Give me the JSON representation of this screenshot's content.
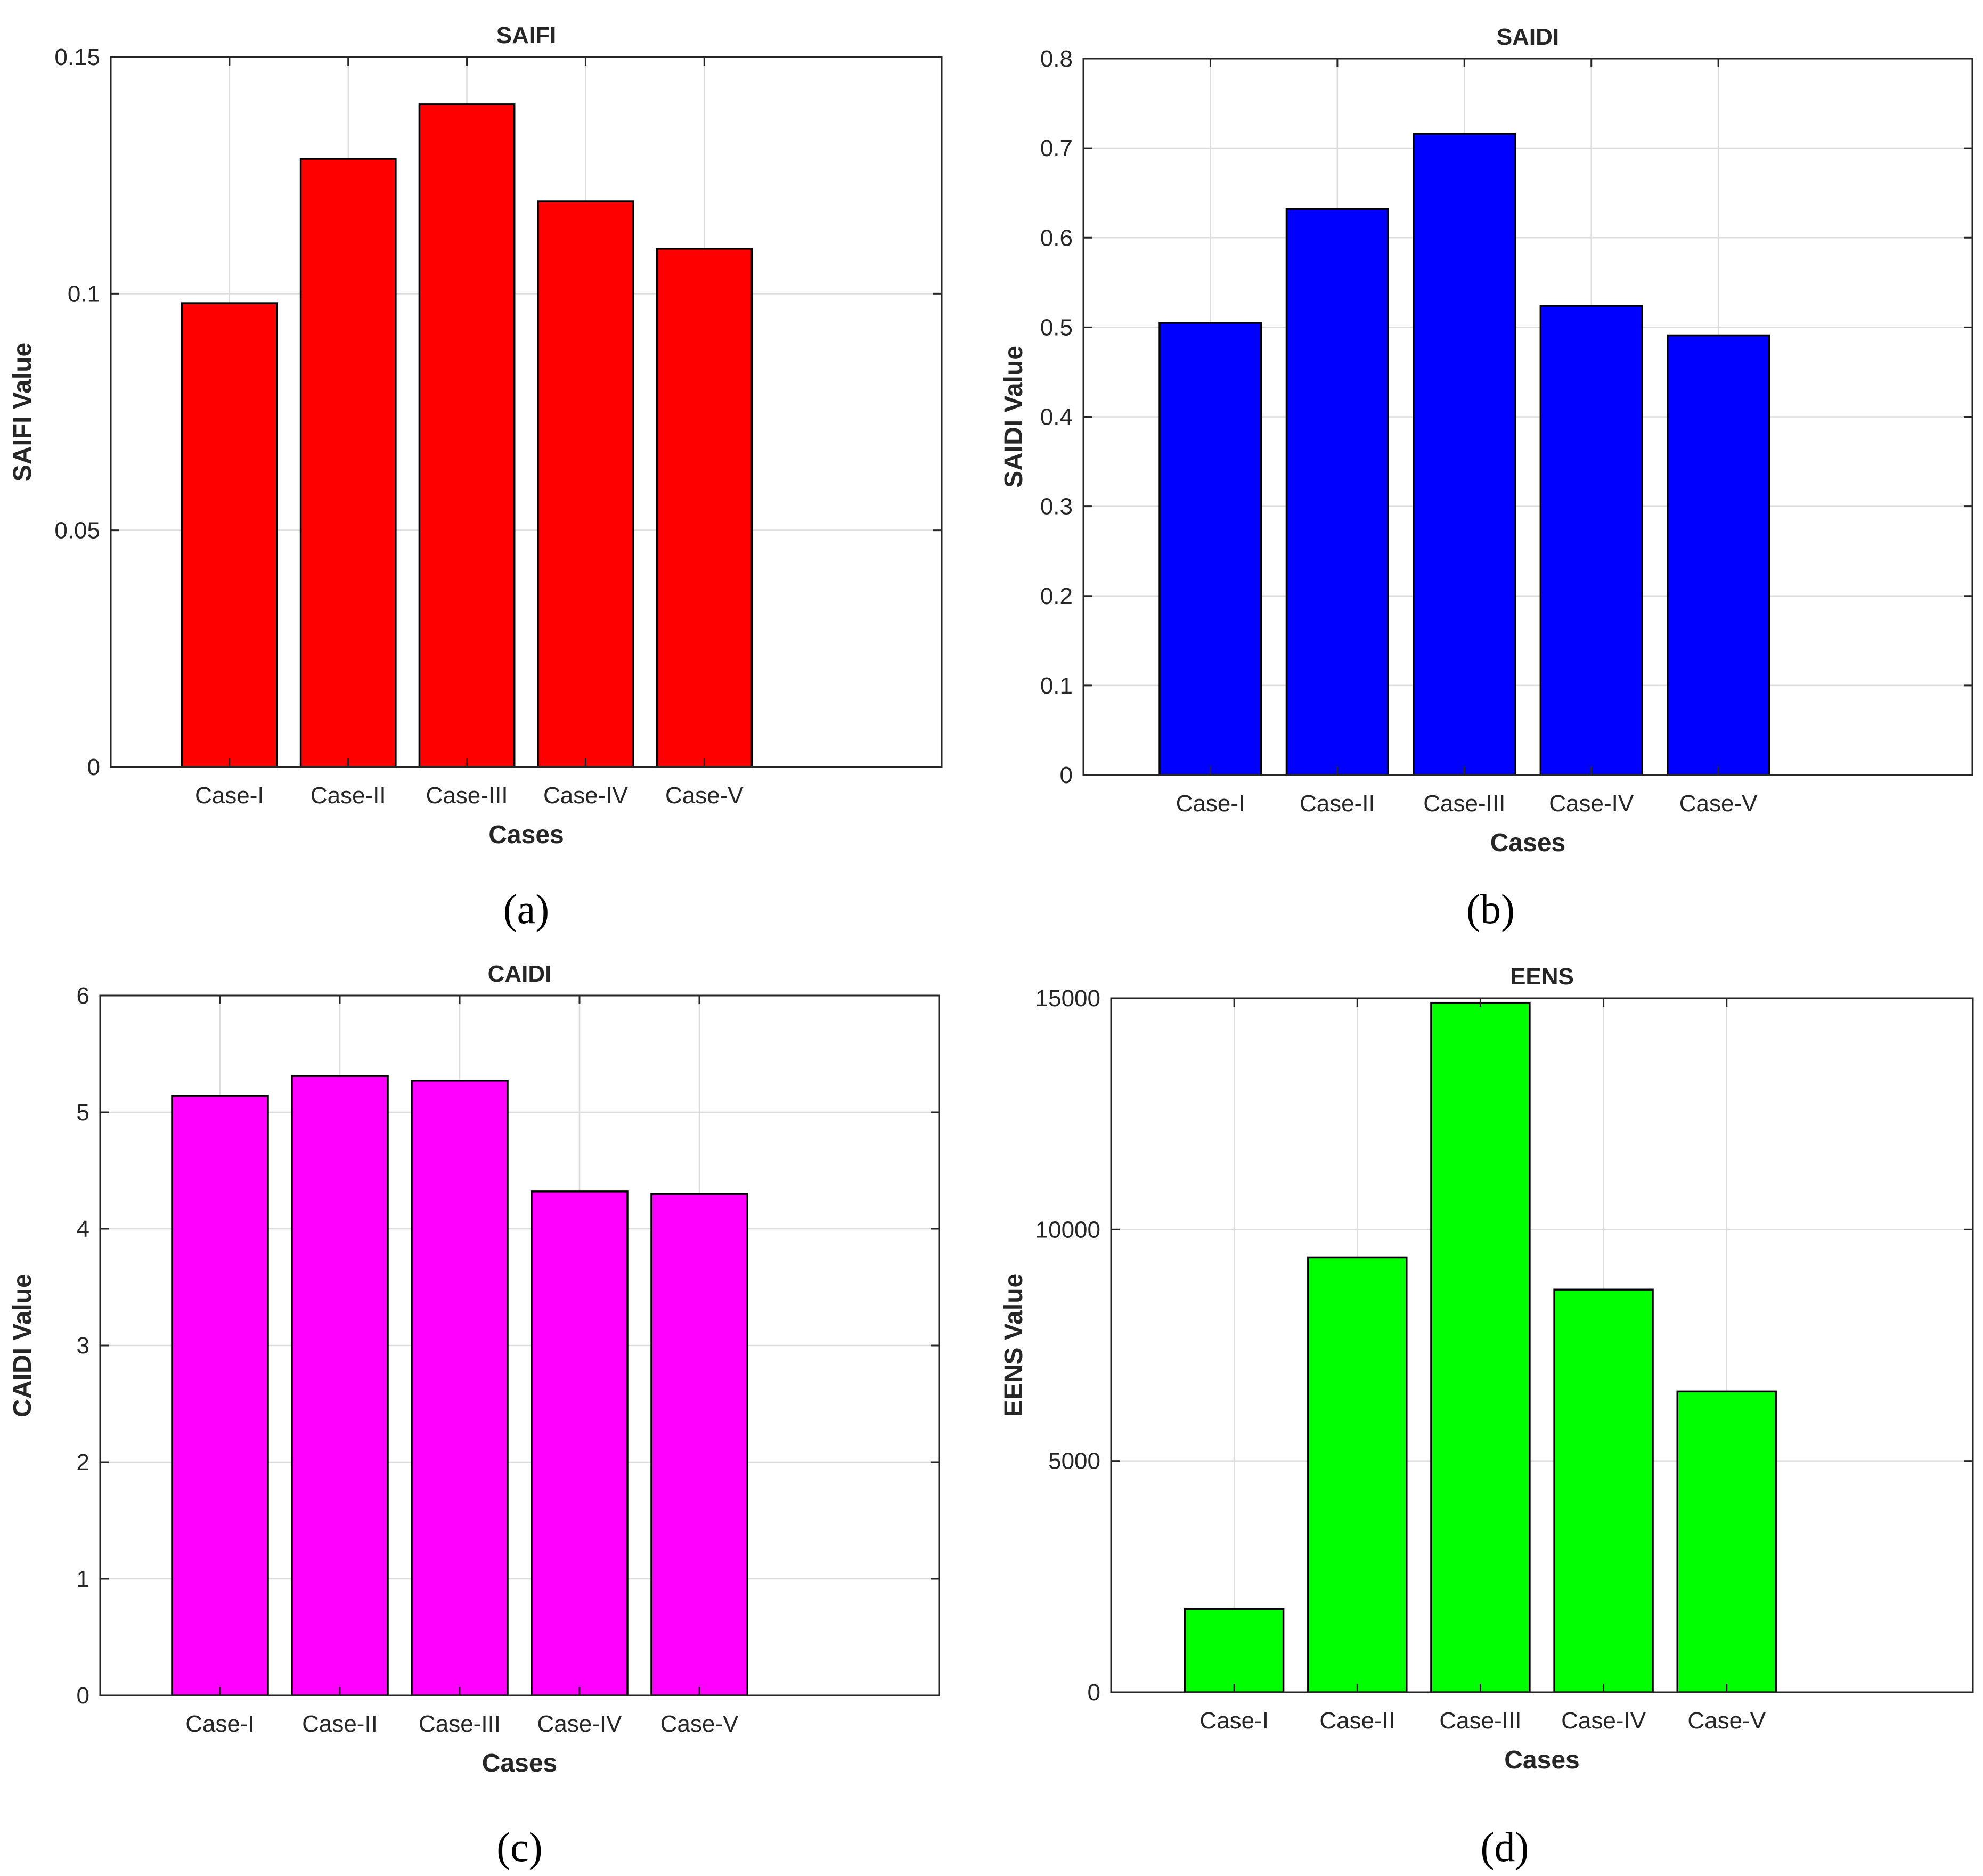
{
  "chart_data": [
    {
      "type": "bar",
      "title": "SAIFI",
      "xlabel": "Cases",
      "ylabel": "SAIFI Value",
      "caption": "(a)",
      "color": "#ff0000",
      "categories": [
        "Case-I",
        "Case-II",
        "Case-III",
        "Case-IV",
        "Case-V"
      ],
      "values": [
        0.098,
        0.1285,
        0.14,
        0.1195,
        0.1095
      ],
      "ylim": [
        0,
        0.15
      ],
      "yticks": [
        0,
        0.05,
        0.1,
        0.15
      ],
      "ytick_labels": [
        "0",
        "0.05",
        "0.1",
        "0.15"
      ],
      "grid": true
    },
    {
      "type": "bar",
      "title": "SAIDI",
      "xlabel": "Cases",
      "ylabel": "SAIDI Value",
      "caption": "(b)",
      "color": "#0000ff",
      "categories": [
        "Case-I",
        "Case-II",
        "Case-III",
        "Case-IV",
        "Case-V"
      ],
      "values": [
        0.505,
        0.632,
        0.716,
        0.524,
        0.491
      ],
      "ylim": [
        0,
        0.8
      ],
      "yticks": [
        0,
        0.1,
        0.2,
        0.3,
        0.4,
        0.5,
        0.6,
        0.7,
        0.8
      ],
      "ytick_labels": [
        "0",
        "0.1",
        "0.2",
        "0.3",
        "0.4",
        "0.5",
        "0.6",
        "0.7",
        "0.8"
      ],
      "grid": true
    },
    {
      "type": "bar",
      "title": "CAIDI",
      "xlabel": "Cases",
      "ylabel": "CAIDI Value",
      "caption": "(c)",
      "color": "#ff00ff",
      "categories": [
        "Case-I",
        "Case-II",
        "Case-III",
        "Case-IV",
        "Case-V"
      ],
      "values": [
        5.14,
        5.31,
        5.27,
        4.32,
        4.3
      ],
      "ylim": [
        0,
        6
      ],
      "yticks": [
        0,
        1,
        2,
        3,
        4,
        5,
        6
      ],
      "ytick_labels": [
        "0",
        "1",
        "2",
        "3",
        "4",
        "5",
        "6"
      ],
      "grid": true
    },
    {
      "type": "bar",
      "title": "EENS",
      "xlabel": "Cases",
      "ylabel": "EENS Value",
      "caption": "(d)",
      "color": "#00ff00",
      "categories": [
        "Case-I",
        "Case-II",
        "Case-III",
        "Case-IV",
        "Case-V"
      ],
      "values": [
        1800,
        9400,
        14900,
        8700,
        6500
      ],
      "ylim": [
        0,
        15000
      ],
      "yticks": [
        0,
        5000,
        10000,
        15000
      ],
      "ytick_labels": [
        "0",
        "5000",
        "10000",
        "15000"
      ],
      "grid": true
    }
  ]
}
